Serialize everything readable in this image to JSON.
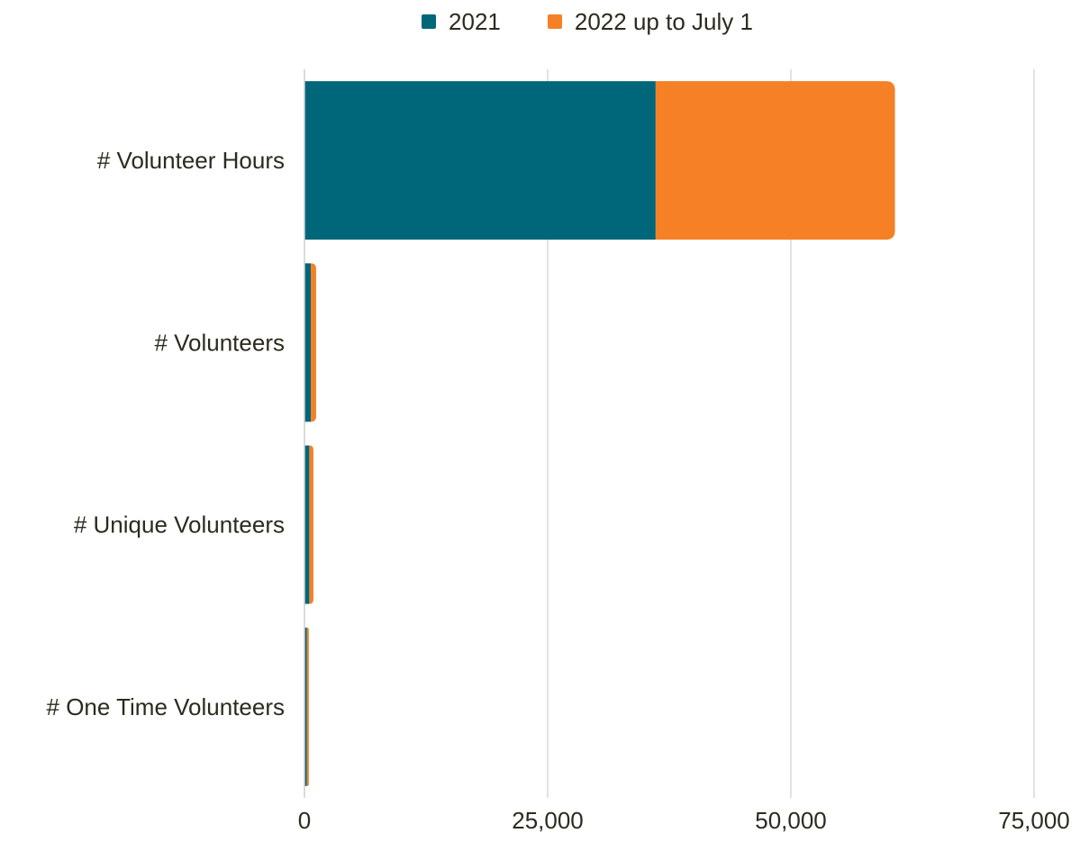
{
  "chart_data": {
    "type": "bar",
    "orientation": "horizontal",
    "stacked": true,
    "categories": [
      "# Volunteer Hours",
      "# Volunteers",
      "# Unique Volunteers",
      "# One Time Volunteers"
    ],
    "series": [
      {
        "name": "2021",
        "color": "#00667a",
        "values": [
          36100,
          650,
          500,
          250
        ]
      },
      {
        "name": "2022 up to July 1",
        "color": "#f58025",
        "values": [
          24600,
          550,
          420,
          200
        ]
      }
    ],
    "x_ticks": [
      "0",
      "25,000",
      "50,000",
      "75,000"
    ],
    "x_tick_values": [
      0,
      25000,
      50000,
      75000
    ],
    "xlim": [
      0,
      75000
    ],
    "grid": true,
    "legend_position": "top"
  }
}
